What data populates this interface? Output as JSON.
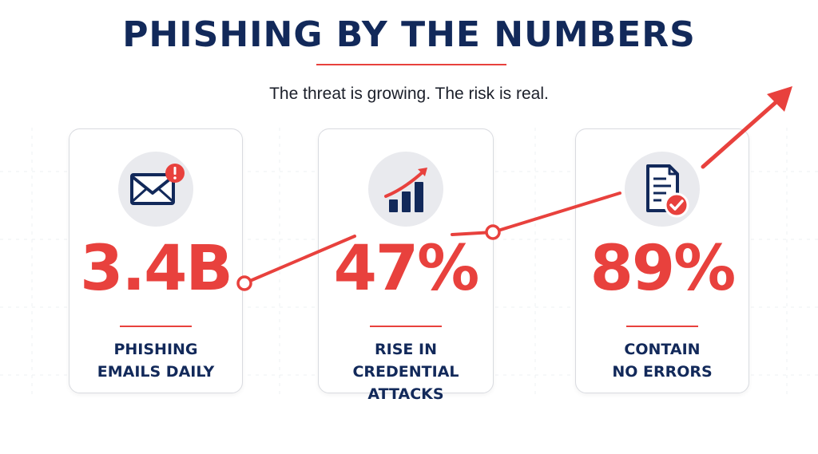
{
  "header": {
    "title": "PHISHING BY THE NUMBERS",
    "subtitle": "The threat is growing. The risk is real."
  },
  "stats": [
    {
      "value": "3.4B",
      "label_line1": "PHISHING",
      "label_line2": "EMAILS DAILY",
      "icon": "email-alert-icon"
    },
    {
      "value": "47%",
      "label_line1": "RISE IN",
      "label_line2": "CREDENTIAL ATTACKS",
      "icon": "rising-bar-chart-icon"
    },
    {
      "value": "89%",
      "label_line1": "CONTAIN",
      "label_line2": "NO ERRORS",
      "icon": "document-check-icon"
    }
  ],
  "colors": {
    "navy": "#12295a",
    "red": "#e8413d",
    "icon_bg": "#e9eaee",
    "card_border": "#d9dbe0"
  },
  "decorations": {
    "trend_arrow": "upward-trend-arrow"
  }
}
